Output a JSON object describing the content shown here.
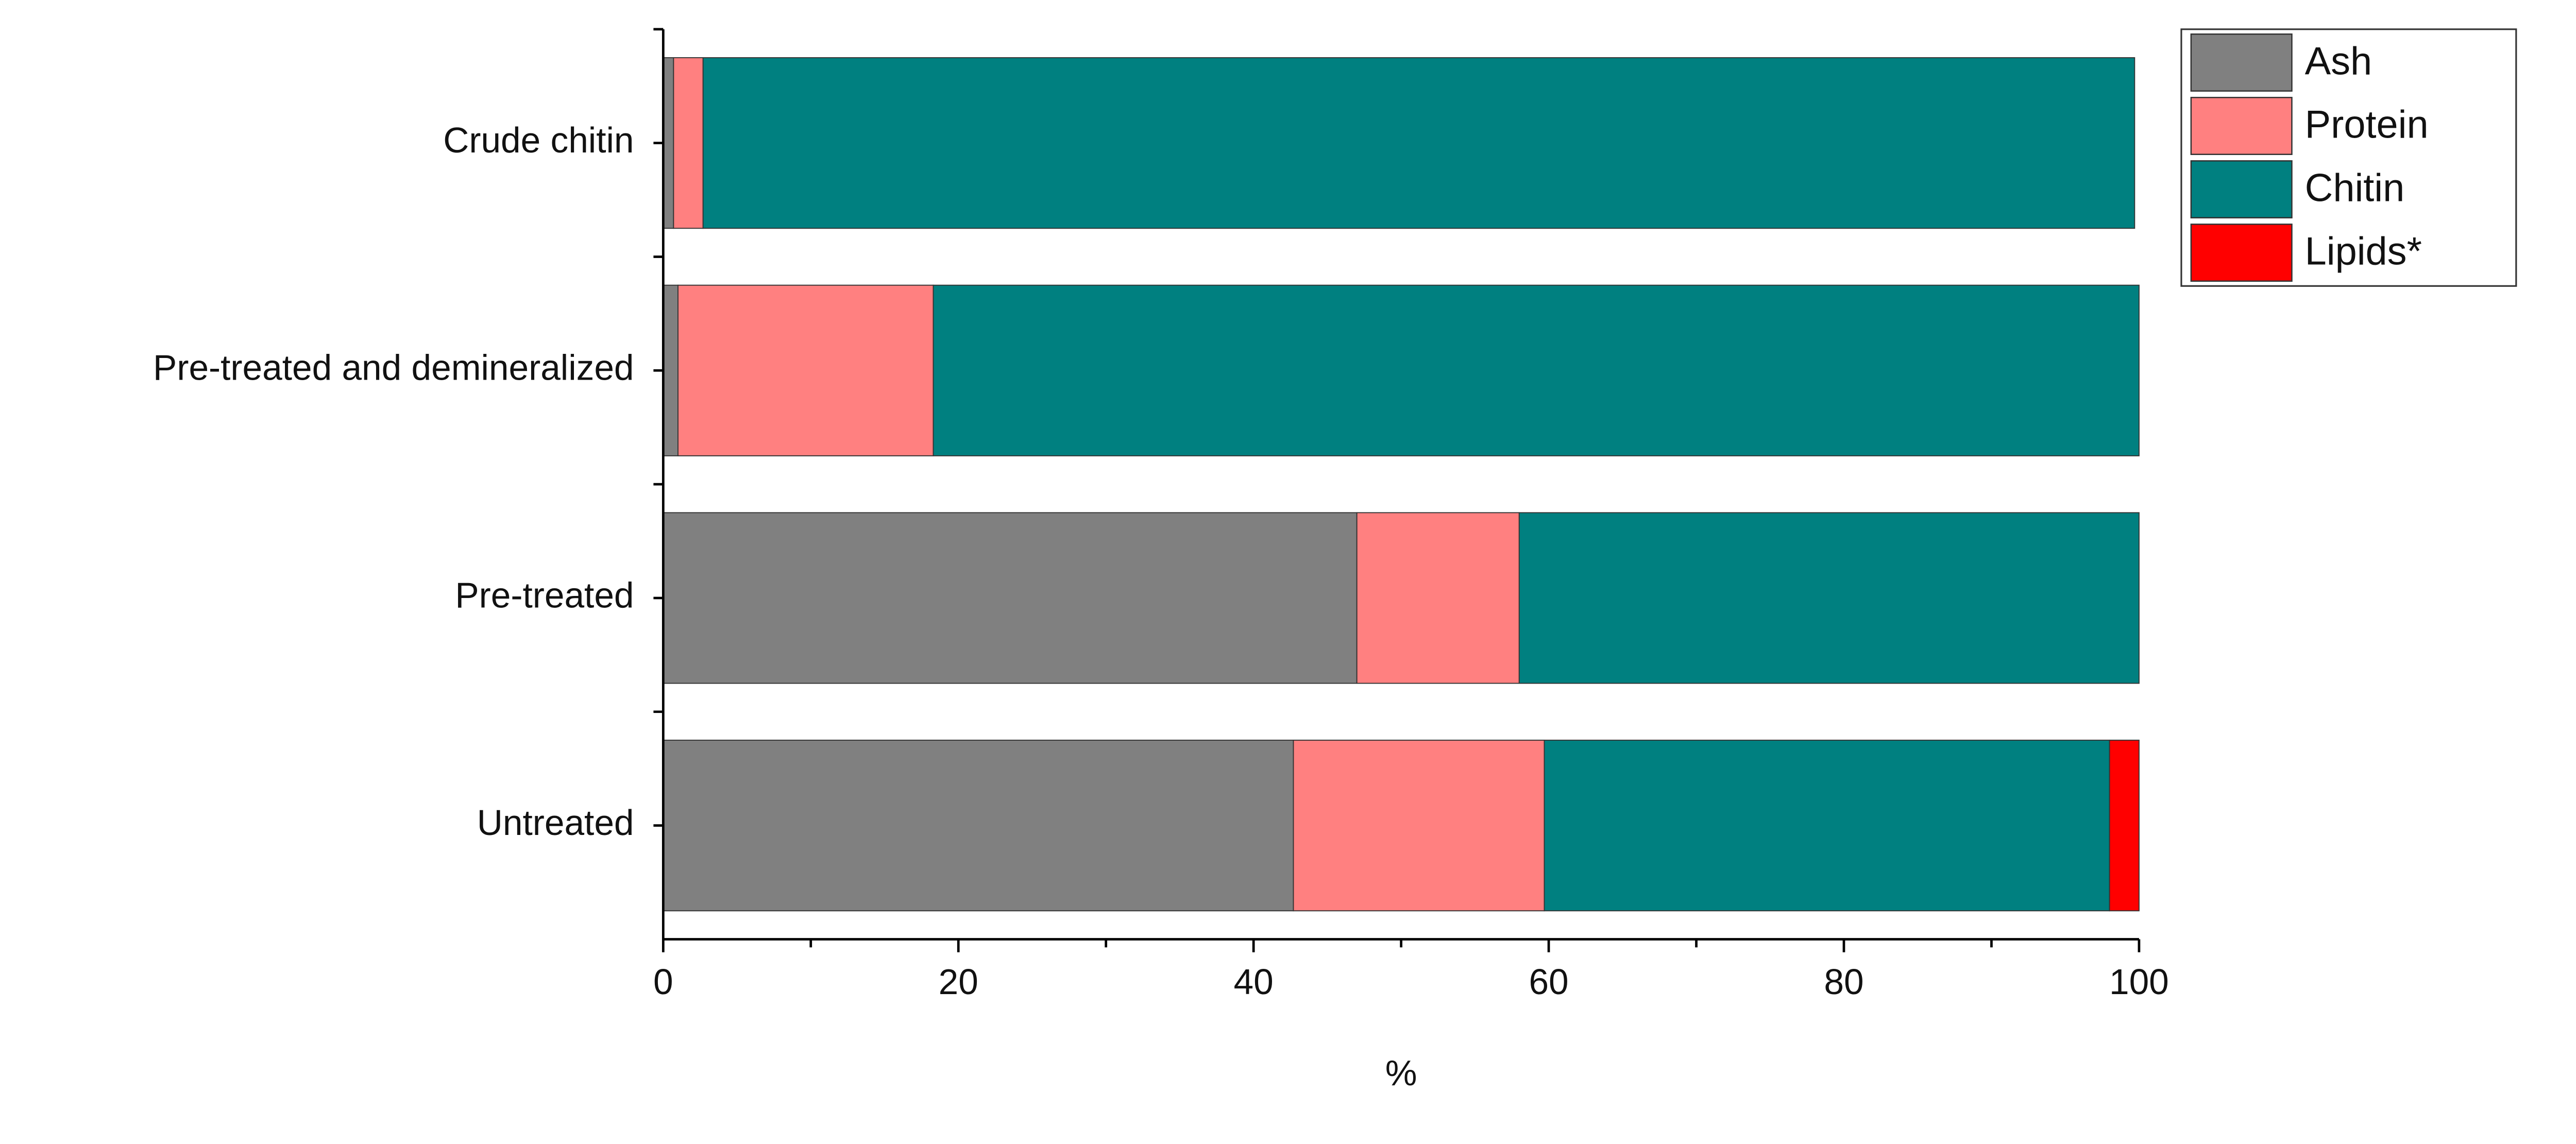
{
  "chart_data": {
    "type": "stacked-barh",
    "x_label": "%",
    "categories": [
      "Untreated",
      "Pre-treated",
      "Pre-treated and demineralized",
      "Crude chitin"
    ],
    "series": [
      {
        "name": "Ash",
        "color": "#808080",
        "values": [
          42.7,
          47,
          1.0,
          0.7
        ]
      },
      {
        "name": "Protein",
        "color": "#ff8080",
        "values": [
          17,
          11,
          17.3,
          2.0
        ]
      },
      {
        "name": "Chitin",
        "color": "#008080",
        "values": [
          38.3,
          42,
          81.7,
          97.0
        ]
      },
      {
        "name": "Lipids*",
        "color": "#ff0000",
        "values": [
          2.0,
          0,
          0,
          0
        ]
      }
    ],
    "xlim": [
      0,
      100
    ],
    "xticks": [
      0,
      20,
      40,
      60,
      80,
      100
    ],
    "xminorticks": [
      10,
      30,
      50,
      70,
      90
    ],
    "legend": "upper right"
  }
}
